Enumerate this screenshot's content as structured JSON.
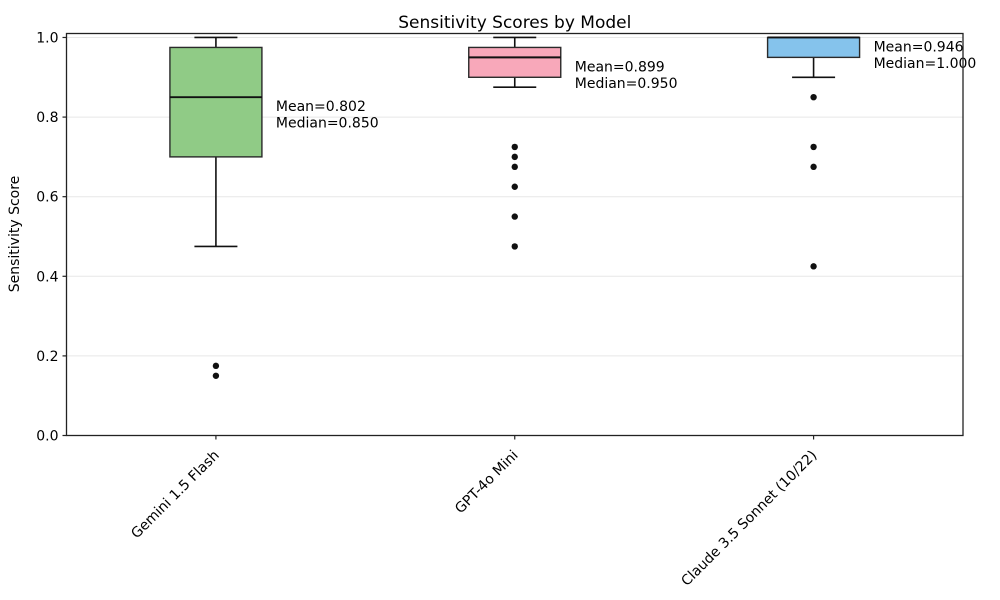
{
  "chart_data": {
    "type": "box",
    "title": "Sensitivity Scores by Model",
    "ylabel": "Sensitivity Score",
    "xlabel": "",
    "ylim": [
      0.0,
      1.0
    ],
    "yticks": [
      0.0,
      0.2,
      0.4,
      0.6,
      0.8,
      1.0
    ],
    "grid": "horizontal",
    "legend": "none",
    "categories": [
      "Gemini 1.5 Flash",
      "GPT-4o Mini",
      "Claude 3.5 Sonnet (10/22)"
    ],
    "series": [
      {
        "model": "Gemini 1.5 Flash",
        "box_color": "#90CB86",
        "whisker_low": 0.475,
        "q1": 0.7,
        "median": 0.85,
        "q3": 0.975,
        "whisker_high": 1.0,
        "outliers": [
          0.175,
          0.15
        ],
        "mean": 0.802,
        "annotation_lines": [
          "Mean=0.802",
          "Median=0.850"
        ]
      },
      {
        "model": "GPT-4o Mini",
        "box_color": "#F8A8BA",
        "whisker_low": 0.875,
        "q1": 0.9,
        "median": 0.95,
        "q3": 0.975,
        "whisker_high": 1.0,
        "outliers": [
          0.725,
          0.7,
          0.675,
          0.625,
          0.55,
          0.475
        ],
        "mean": 0.899,
        "annotation_lines": [
          "Mean=0.899",
          "Median=0.950"
        ]
      },
      {
        "model": "Claude 3.5 Sonnet (10/22)",
        "box_color": "#85C3EC",
        "whisker_low": 0.9,
        "q1": 0.95,
        "median": 1.0,
        "q3": 1.0,
        "whisker_high": 1.0,
        "outliers": [
          0.85,
          0.725,
          0.675,
          0.425
        ],
        "mean": 0.946,
        "annotation_lines": [
          "Mean=0.946",
          "Median=1.000"
        ]
      }
    ],
    "colors": {
      "outlier_marker": "#111111",
      "gridline": "#e7e7e7",
      "spine": "#222222",
      "median_line": "#111111",
      "whisker_line": "#111111",
      "box_edge": "#2a2a2a"
    }
  }
}
